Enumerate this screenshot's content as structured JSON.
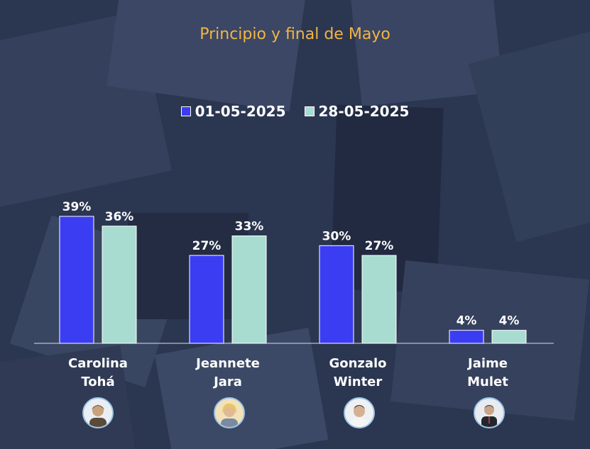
{
  "colors": {
    "series1": "#3b3df2",
    "series2": "#a8dcd1",
    "title": "#f2b544"
  },
  "chart_data": {
    "type": "bar",
    "title": "Principio y final de Mayo",
    "categories": [
      "Carolina Tohá",
      "Jeannete Jara",
      "Gonzalo Winter",
      "Jaime Mulet"
    ],
    "category_lines": [
      [
        "Carolina",
        "Tohá"
      ],
      [
        "Jeannete",
        "Jara"
      ],
      [
        "Gonzalo",
        "Winter"
      ],
      [
        "Jaime",
        "Mulet"
      ]
    ],
    "series": [
      {
        "name": "01-05-2025",
        "values": [
          39,
          27,
          30,
          4
        ],
        "labels": [
          "39%",
          "27%",
          "30%",
          "4%"
        ]
      },
      {
        "name": "28-05-2025",
        "values": [
          36,
          33,
          27,
          4
        ],
        "labels": [
          "36%",
          "33%",
          "27%",
          "4%"
        ]
      }
    ],
    "ylim": [
      0,
      45
    ],
    "grid": false,
    "legend_position": "top-center",
    "xlabel": "",
    "ylabel": ""
  }
}
